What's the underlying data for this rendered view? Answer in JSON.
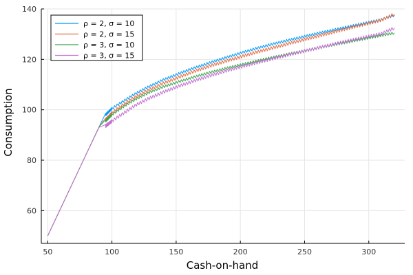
{
  "chart_data": {
    "type": "line",
    "title": "",
    "xlabel": "Cash-on-hand",
    "ylabel": "Consumption",
    "xlim": [
      45,
      328
    ],
    "ylim": [
      47,
      140
    ],
    "xticks": [
      50,
      100,
      150,
      200,
      250,
      300
    ],
    "yticks": [
      60,
      80,
      100,
      120,
      140
    ],
    "grid": true,
    "legend_position": "top-left",
    "series": [
      {
        "name": "ρ = 2, σ = 10",
        "color": "#009AFA",
        "x": [
          50,
          60,
          70,
          80,
          90,
          95,
          97,
          100,
          110,
          120,
          130,
          140,
          150,
          160,
          170,
          180,
          190,
          200,
          210,
          220,
          230,
          240,
          250,
          260,
          270,
          280,
          290,
          300,
          310,
          320
        ],
        "y": [
          50,
          60.8,
          71.6,
          82.4,
          93.2,
          98,
          99,
          100.5,
          103.8,
          106.9,
          109.5,
          111.9,
          113.9,
          115.9,
          117.6,
          119.3,
          120.9,
          122.5,
          124,
          125.4,
          126.7,
          127.9,
          129.1,
          130.3,
          131.4,
          132.5,
          133.6,
          134.7,
          135.8,
          137.5
        ]
      },
      {
        "name": "ρ = 2, σ = 15",
        "color": "#E36F47",
        "x": [
          50,
          60,
          70,
          80,
          90,
          95,
          97,
          100,
          110,
          120,
          130,
          140,
          150,
          160,
          170,
          180,
          190,
          200,
          210,
          220,
          230,
          240,
          250,
          260,
          270,
          280,
          290,
          300,
          310,
          320
        ],
        "y": [
          50,
          60.8,
          71.6,
          82.4,
          93.2,
          96,
          97,
          98.8,
          102.5,
          105.6,
          108.2,
          110.5,
          112.5,
          114.5,
          116.3,
          118,
          119.5,
          121,
          122.5,
          123.9,
          125.2,
          126.6,
          127.9,
          129.2,
          130.5,
          131.8,
          133.1,
          134.3,
          135.6,
          138
        ]
      },
      {
        "name": "ρ = 3, σ = 10",
        "color": "#3EA44E",
        "x": [
          50,
          60,
          70,
          80,
          90,
          95,
          97,
          100,
          110,
          120,
          130,
          140,
          150,
          160,
          170,
          180,
          190,
          200,
          210,
          220,
          230,
          240,
          250,
          260,
          270,
          280,
          290,
          300,
          310,
          320
        ],
        "y": [
          50,
          60.8,
          71.6,
          82.4,
          93.2,
          95.5,
          96.5,
          98,
          101.6,
          104.6,
          107.1,
          109.1,
          110.8,
          112.4,
          113.9,
          115.3,
          116.6,
          117.8,
          119,
          120.2,
          121.3,
          122.4,
          123.4,
          124.5,
          125.5,
          126.5,
          127.5,
          128.5,
          129.5,
          130.5
        ]
      },
      {
        "name": "ρ = 3, σ = 15",
        "color": "#C271D2",
        "x": [
          50,
          60,
          70,
          80,
          90,
          95,
          97,
          100,
          110,
          120,
          130,
          140,
          150,
          160,
          170,
          180,
          190,
          200,
          210,
          220,
          230,
          240,
          250,
          260,
          270,
          280,
          290,
          300,
          310,
          320
        ],
        "y": [
          50,
          60.8,
          71.6,
          82.4,
          93,
          93.5,
          94.3,
          95.5,
          99,
          102.3,
          104.8,
          107,
          109,
          110.8,
          112.5,
          114.1,
          115.6,
          117,
          118.3,
          119.6,
          120.9,
          122.1,
          123.3,
          124.5,
          125.7,
          126.9,
          128,
          129.1,
          130.2,
          132.5
        ]
      }
    ]
  }
}
